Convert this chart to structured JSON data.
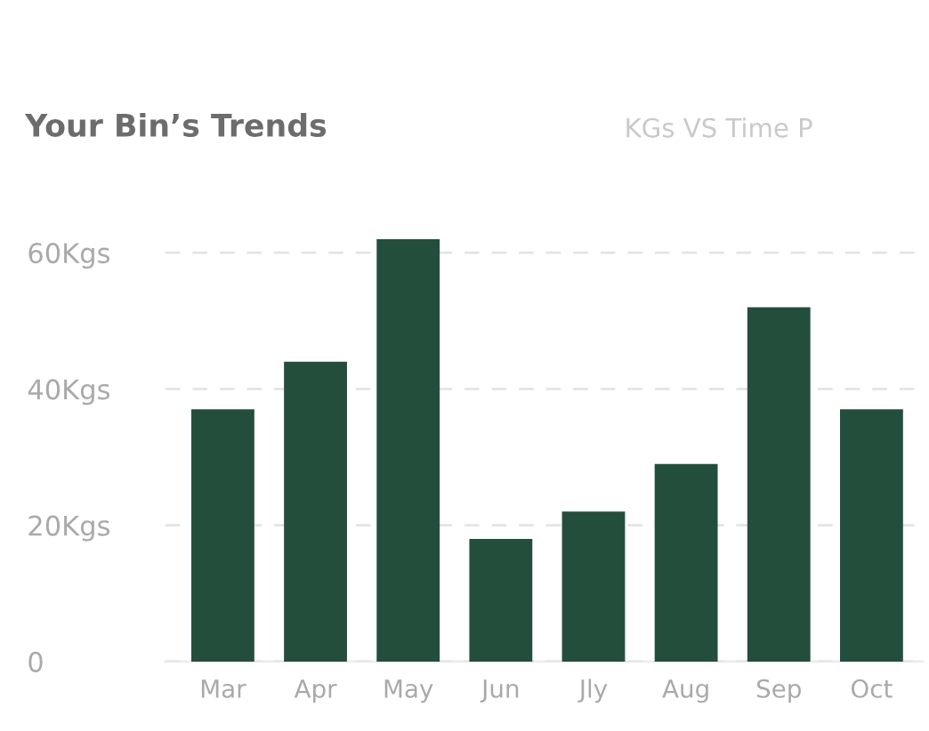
{
  "chart_data": {
    "type": "bar",
    "title": "Your Bin’s Trends",
    "subtitle": "KGs VS Time P",
    "categories": [
      "Mar",
      "Apr",
      "May",
      "Jun",
      "Jly",
      "Aug",
      "Sep",
      "Oct"
    ],
    "values": [
      37,
      44,
      62,
      18,
      22,
      29,
      52,
      37
    ],
    "color": "#234e3b",
    "ylim": [
      0,
      62
    ],
    "yticks": [
      0,
      {
        "value": 20,
        "label": "20Kgs"
      },
      {
        "value": 40,
        "label": "40Kgs"
      },
      {
        "value": 60,
        "label": "60Kgs"
      }
    ],
    "grid": "y"
  }
}
